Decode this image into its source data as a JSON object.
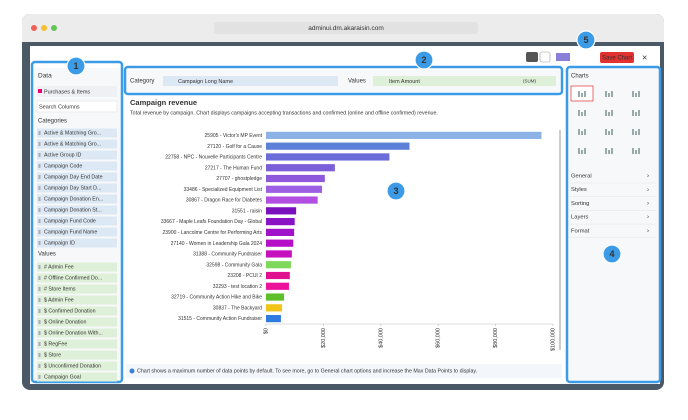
{
  "browser": {
    "url": "adminui.dm.akaraisin.com"
  },
  "toolbar": {
    "save_button": "Save Chart"
  },
  "sidebar": {
    "data_heading": "Data",
    "dataset": "Purchases & Items",
    "search_placeholder": "Search Columns",
    "categories_heading": "Categories",
    "categories": [
      "Active & Matching Gro...",
      "Active & Matching Gro...",
      "Active Group ID",
      "Campaign Code",
      "Campaign Day End Date",
      "Campaign Day Start D...",
      "Campaign Donation En...",
      "Campaign Donation St...",
      "Campaign Fund Code",
      "Campaign Fund Name",
      "Campaign ID"
    ],
    "values_heading": "Values",
    "values": [
      "# Admin Fee",
      "# Offline Confirmed Do...",
      "# Store Items",
      "$ Admin Fee",
      "$ Confirmed Donation",
      "$ Online Donation",
      "$ Online Donation With...",
      "$ RegFee",
      "$ Store",
      "$ Unconfirmed Donation",
      "Campaign Goal"
    ]
  },
  "fields": {
    "category_label": "Category",
    "category_value": "Campaign Long Name",
    "values_label": "Values",
    "values_value": "Item Amount",
    "aggregation": "(SUM)"
  },
  "settings": {
    "charts_heading": "Charts",
    "sections": [
      "General",
      "Styles",
      "Sorting",
      "Layers",
      "Format"
    ]
  },
  "footer_note": "Chart shows a maximum number of data points by default. To see more, go to General chart options and increase the Max Data Points to display.",
  "badges": [
    "1",
    "2",
    "3",
    "4",
    "5"
  ],
  "chart_data": {
    "type": "bar",
    "orientation": "horizontal",
    "title": "Campaign revenue",
    "subtitle": "Total revenue by campaign. Chart displays campaigns accepting transactions and confirmed (online and offline confirmed) revenue.",
    "categories": [
      "25905 - Victor's MP Event",
      "27120 - Golf for a Cause",
      "22758 - NPC - Nouvelle Participants Centre",
      "27217 - The Human Fund",
      "27707 - ghostpledge",
      "33486 - Specialized Equipment List",
      "30867 - Dragon Race for Diabetes",
      "31551 - raisin",
      "33667 - Maple Leafs Foundation Day - Global",
      "23900 - Lancolme Centre for Performing Arts",
      "27140 - Women in Leadership Gala 2024",
      "31388 - Community Fundraiser",
      "32598 - Community Gala",
      "23208 - PCUI 2",
      "32293 - test location 2",
      "32719 - Community Action Hike and Bike",
      "30837 - The Backyard",
      "31515 - Community Action Fundraiser"
    ],
    "values": [
      96000,
      50000,
      43000,
      24000,
      20500,
      19500,
      18000,
      10500,
      10000,
      9800,
      9500,
      9000,
      8700,
      8300,
      8000,
      6300,
      5600,
      5200
    ],
    "colors": [
      "#8db3e6",
      "#5c7fd8",
      "#6a6cd9",
      "#7a5fd8",
      "#8d58db",
      "#9c5ee2",
      "#b24fe2",
      "#7a10bd",
      "#8a12c5",
      "#9f12c9",
      "#b50fc8",
      "#c60fbf",
      "#7fd85a",
      "#e0108f",
      "#ec129c",
      "#5fbf2b",
      "#f0c419",
      "#2f7be0"
    ],
    "xlim": [
      0,
      100000
    ],
    "xticks": [
      {
        "value": 0,
        "label": "$0"
      },
      {
        "value": 20000,
        "label": "$20,000"
      },
      {
        "value": 40000,
        "label": "$40,000"
      },
      {
        "value": 60000,
        "label": "$60,000"
      },
      {
        "value": 80000,
        "label": "$80,000"
      },
      {
        "value": 100000,
        "label": "$100,000"
      }
    ]
  }
}
